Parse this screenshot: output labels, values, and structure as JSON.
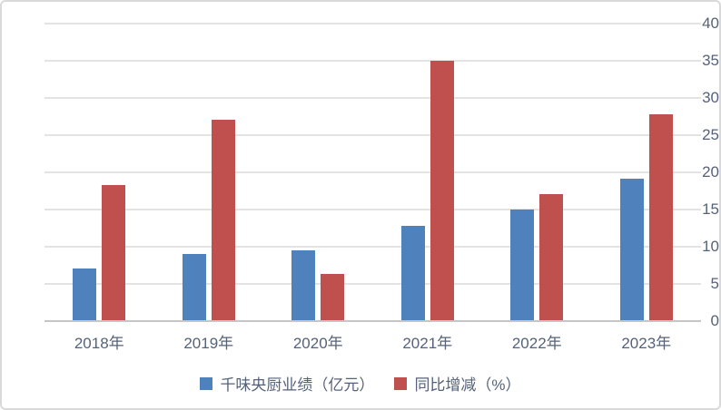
{
  "chart_data": {
    "type": "bar",
    "title": "",
    "xlabel": "",
    "ylabel": "",
    "categories": [
      "2018年",
      "2019年",
      "2020年",
      "2021年",
      "2022年",
      "2023年"
    ],
    "series": [
      {
        "name": "千味央厨业绩（亿元）",
        "color": "#4F81BD",
        "values": [
          7.0,
          8.9,
          9.4,
          12.7,
          14.9,
          19.0
        ]
      },
      {
        "name": "同比增减（%）",
        "color": "#C0504D",
        "values": [
          18.2,
          26.9,
          6.2,
          34.9,
          16.9,
          27.7
        ]
      }
    ],
    "ylim": [
      0,
      40
    ],
    "yticks": [
      0,
      5,
      10,
      15,
      20,
      25,
      30,
      35,
      40
    ],
    "grid": true,
    "legend_position": "bottom"
  },
  "colors": {
    "gridline": "#E3E3E3",
    "axis_line": "#C6C6C6",
    "label_text": "#55627A",
    "frame_border": "#D9D9D9",
    "background": "#FFFFFF"
  }
}
